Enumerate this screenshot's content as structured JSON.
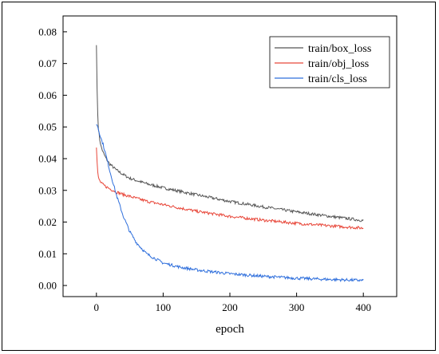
{
  "chart_data": {
    "type": "line",
    "title": "",
    "xlabel": "epoch",
    "ylabel": "",
    "xlim": [
      -50,
      450
    ],
    "ylim": [
      -0.0035,
      0.085
    ],
    "x_ticks": [
      0,
      100,
      200,
      300,
      400
    ],
    "y_ticks": [
      0.0,
      0.01,
      0.02,
      0.03,
      0.04,
      0.05,
      0.06,
      0.07,
      0.08
    ],
    "x_tick_labels": [
      "0",
      "100",
      "200",
      "300",
      "400"
    ],
    "y_tick_labels": [
      "0.00",
      "0.01",
      "0.02",
      "0.03",
      "0.04",
      "0.05",
      "0.06",
      "0.07",
      "0.08"
    ],
    "grid": false,
    "legend_position": "top-right",
    "series": [
      {
        "name": "train/box_loss",
        "color": "#555555",
        "x": [
          0,
          1,
          2,
          3,
          5,
          7,
          10,
          15,
          20,
          30,
          40,
          50,
          75,
          100,
          150,
          200,
          250,
          300,
          350,
          400
        ],
        "y": [
          0.0758,
          0.062,
          0.054,
          0.0495,
          0.046,
          0.0438,
          0.042,
          0.0398,
          0.0383,
          0.0364,
          0.035,
          0.0338,
          0.0321,
          0.0308,
          0.0286,
          0.0265,
          0.0248,
          0.0232,
          0.0218,
          0.0205
        ]
      },
      {
        "name": "train/obj_loss",
        "color": "#e8473a",
        "x": [
          0,
          1,
          2,
          3,
          5,
          7,
          10,
          15,
          20,
          30,
          40,
          50,
          75,
          100,
          150,
          200,
          250,
          300,
          350,
          400
        ],
        "y": [
          0.0435,
          0.039,
          0.0358,
          0.034,
          0.033,
          0.0323,
          0.0318,
          0.0311,
          0.0305,
          0.0295,
          0.0287,
          0.0281,
          0.0266,
          0.0255,
          0.0234,
          0.0218,
          0.0206,
          0.0196,
          0.0188,
          0.0181
        ]
      },
      {
        "name": "train/cls_loss",
        "color": "#2f6fdc",
        "x": [
          0,
          1,
          2,
          3,
          5,
          7,
          10,
          15,
          20,
          30,
          40,
          50,
          60,
          75,
          100,
          125,
          150,
          200,
          250,
          300,
          350,
          400
        ],
        "y": [
          0.0508,
          0.0505,
          0.05,
          0.0493,
          0.0478,
          0.0463,
          0.0445,
          0.0405,
          0.0362,
          0.0285,
          0.022,
          0.017,
          0.0135,
          0.01,
          0.0071,
          0.0058,
          0.0049,
          0.0037,
          0.0029,
          0.0023,
          0.0019,
          0.0016
        ]
      }
    ]
  }
}
